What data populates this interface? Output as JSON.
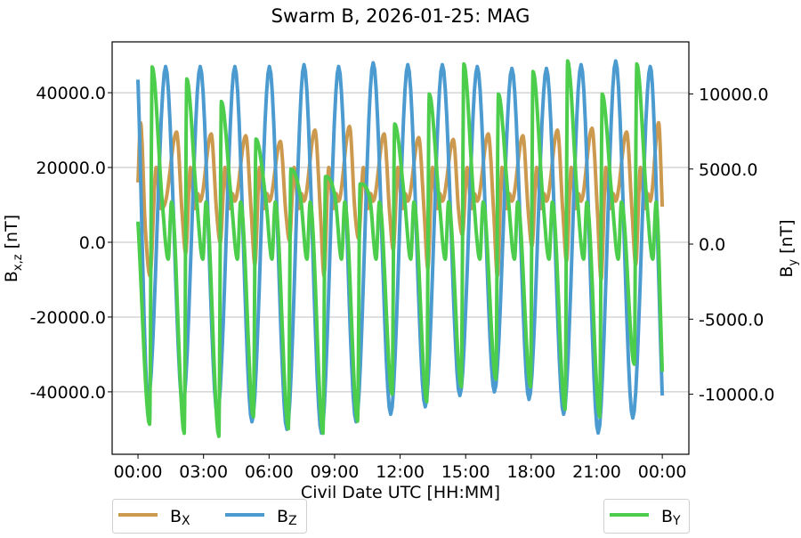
{
  "chart_data": {
    "type": "line",
    "title": "Swarm B, 2026-01-25: MAG",
    "xlabel": "Civil Date UTC [HH:MM]",
    "ylabel_left": {
      "base": "B",
      "sub": "x,z",
      "unit": " [nT]"
    },
    "ylabel_right": {
      "base": "B",
      "sub": "y",
      "unit": " [nT]"
    },
    "xlim": [
      "-01:11",
      "25:13"
    ],
    "ylim_left": [
      -56700,
      53600
    ],
    "ylim_right": [
      -14000,
      13470
    ],
    "xticks": [
      "00:00",
      "03:00",
      "06:00",
      "09:00",
      "12:00",
      "15:00",
      "18:00",
      "21:00",
      "24:00"
    ],
    "xtick_labels": [
      "00:00",
      "03:00",
      "06:00",
      "09:00",
      "12:00",
      "15:00",
      "18:00",
      "21:00",
      "00:00"
    ],
    "yticks_left": [
      -40000,
      -20000,
      0,
      20000,
      40000
    ],
    "ytick_labels_left": [
      "-40000.0",
      "-20000.0",
      "0.0",
      "20000.0",
      "40000.0"
    ],
    "yticks_right": [
      -10000,
      -5000,
      0,
      5000,
      10000
    ],
    "ytick_labels_right": [
      "-10000.0",
      "-5000.0",
      "0.0",
      "5000.0",
      "10000.0"
    ],
    "grid": "horizontal (left axis)",
    "legend_left": {
      "placement": "below-left",
      "entries": [
        {
          "base": "B",
          "sub": "X",
          "series": 0
        },
        {
          "base": "B",
          "sub": "Z",
          "series": 1
        }
      ]
    },
    "legend_right": {
      "placement": "below-right",
      "entries": [
        {
          "base": "B",
          "sub": "Y",
          "series": 2
        }
      ]
    },
    "series": [
      {
        "key": "Bx",
        "axis": "left",
        "color": "#cc9a4f",
        "x": [
          "00:00",
          "00:07",
          "00:20",
          "00:33",
          "00:50",
          "01:03",
          "01:16",
          "01:46",
          "02:01",
          "02:11",
          "02:24",
          "02:36",
          "02:44",
          "02:51",
          "03:21",
          "03:36",
          "03:46",
          "03:59",
          "04:11",
          "04:19",
          "04:26",
          "04:56",
          "05:11",
          "05:21",
          "05:34",
          "05:46",
          "05:54",
          "06:01",
          "06:31",
          "06:46",
          "06:56",
          "07:09",
          "07:21",
          "07:29",
          "07:36",
          "08:06",
          "08:21",
          "08:31",
          "08:44",
          "08:56",
          "09:04",
          "09:11",
          "09:41",
          "09:56",
          "10:06",
          "10:19",
          "10:31",
          "10:39",
          "10:46",
          "11:16",
          "11:31",
          "11:41",
          "11:54",
          "12:06",
          "12:14",
          "12:21",
          "12:51",
          "13:06",
          "13:16",
          "13:29",
          "13:41",
          "13:49",
          "13:56",
          "14:26",
          "14:41",
          "14:51",
          "15:04",
          "15:16",
          "15:24",
          "15:32",
          "16:02",
          "16:17",
          "16:27",
          "16:40",
          "16:52",
          "17:00",
          "17:07",
          "17:37",
          "17:52",
          "18:02",
          "18:15",
          "18:27",
          "18:35",
          "18:42",
          "19:12",
          "19:27",
          "19:37",
          "19:50",
          "20:02",
          "20:10",
          "20:17",
          "20:47",
          "21:02",
          "21:12",
          "21:25",
          "21:37",
          "21:45",
          "21:52",
          "22:22",
          "22:37",
          "22:47",
          "23:00",
          "23:12",
          "23:20",
          "23:27",
          "23:50",
          "24:00"
        ],
        "y": [
          16000,
          32000,
          4000,
          -9000,
          20000,
          9000,
          11000,
          29500,
          8000,
          -3000,
          20000,
          9000,
          13000,
          11000,
          29000,
          8000,
          0,
          20000,
          9000,
          13000,
          11000,
          28500,
          8000,
          -6000,
          20000,
          9000,
          13000,
          11000,
          27000,
          8000,
          500,
          20000,
          9000,
          13000,
          11000,
          30000,
          8000,
          -9000,
          20000,
          9000,
          13000,
          11000,
          31000,
          8000,
          1000,
          20000,
          9000,
          13000,
          11000,
          29000,
          8000,
          -2000,
          20000,
          9000,
          13000,
          11000,
          28000,
          8000,
          -7000,
          20000,
          9000,
          13000,
          11000,
          27500,
          8000,
          2000,
          20000,
          9000,
          13000,
          11000,
          29000,
          8000,
          -9000,
          20000,
          9000,
          13000,
          11000,
          28500,
          8000,
          -1000,
          20000,
          9000,
          13000,
          11000,
          30000,
          8000,
          -5000,
          20000,
          9000,
          13000,
          11000,
          30500,
          8000,
          -10000,
          20000,
          9000,
          13000,
          11000,
          29500,
          8000,
          -6000,
          20000,
          9000,
          13000,
          11000,
          32000,
          9500
        ]
      },
      {
        "key": "Bz",
        "axis": "left",
        "color": "#4b9bd0",
        "x": [
          "00:00",
          "00:28",
          "01:16",
          "02:03",
          "02:51",
          "03:38",
          "04:26",
          "05:13",
          "06:01",
          "06:49",
          "07:36",
          "08:24",
          "09:11",
          "09:59",
          "10:46",
          "11:34",
          "12:21",
          "13:09",
          "13:56",
          "14:44",
          "15:32",
          "16:19",
          "17:07",
          "17:54",
          "18:42",
          "19:29",
          "20:17",
          "21:04",
          "21:52",
          "22:39",
          "23:27",
          "24:00"
        ],
        "y": [
          43500,
          -42000,
          47000,
          -44000,
          47000,
          -46000,
          47000,
          -48000,
          47000,
          -50000,
          47500,
          -51000,
          47000,
          -48000,
          48000,
          -46000,
          47500,
          -44000,
          47500,
          -41000,
          47000,
          -40000,
          46500,
          -42000,
          46500,
          -46000,
          47500,
          -51000,
          48500,
          -47000,
          47000,
          -41000
        ]
      },
      {
        "key": "By",
        "axis": "right",
        "color": "#4ccd4c",
        "x": [
          "00:00",
          "00:32",
          "00:39",
          "01:06",
          "01:23",
          "01:32",
          "02:07",
          "02:14",
          "02:41",
          "02:58",
          "03:07",
          "03:42",
          "03:49",
          "04:16",
          "04:33",
          "04:42",
          "05:17",
          "05:24",
          "05:51",
          "06:08",
          "06:17",
          "06:53",
          "07:00",
          "07:27",
          "07:44",
          "07:53",
          "08:28",
          "08:35",
          "09:02",
          "09:19",
          "09:28",
          "10:03",
          "10:10",
          "10:37",
          "10:54",
          "11:03",
          "11:38",
          "11:45",
          "12:12",
          "12:29",
          "12:38",
          "13:13",
          "13:20",
          "13:47",
          "14:04",
          "14:13",
          "14:48",
          "14:55",
          "15:22",
          "15:39",
          "15:48",
          "16:23",
          "16:30",
          "16:57",
          "17:14",
          "17:23",
          "17:58",
          "18:05",
          "18:32",
          "18:49",
          "18:58",
          "19:33",
          "19:40",
          "20:07",
          "20:24",
          "20:33",
          "21:08",
          "21:15",
          "21:42",
          "21:59",
          "22:08",
          "22:43",
          "22:50",
          "23:17",
          "23:34",
          "23:43",
          "24:00"
        ],
        "y": [
          1500,
          -12000,
          11800,
          3000,
          -1000,
          2800,
          -12600,
          11000,
          3000,
          -1000,
          2800,
          -12800,
          9500,
          3000,
          -1000,
          2800,
          -11500,
          7000,
          3000,
          -1000,
          2800,
          -12300,
          5000,
          3000,
          -1000,
          2800,
          -12600,
          4500,
          3000,
          -1000,
          2800,
          -11800,
          4000,
          3000,
          -1000,
          2800,
          -10000,
          8000,
          3000,
          -1000,
          2800,
          -10500,
          10000,
          3000,
          -1000,
          2800,
          -9500,
          12000,
          3000,
          -1000,
          2800,
          -9000,
          10000,
          3000,
          -1000,
          2800,
          -9500,
          11500,
          3000,
          -1000,
          2800,
          -11000,
          12200,
          3000,
          -1000,
          2800,
          -11500,
          10000,
          3000,
          -1000,
          2800,
          -8000,
          12000,
          3000,
          -1000,
          2800,
          -8500
        ]
      }
    ]
  }
}
